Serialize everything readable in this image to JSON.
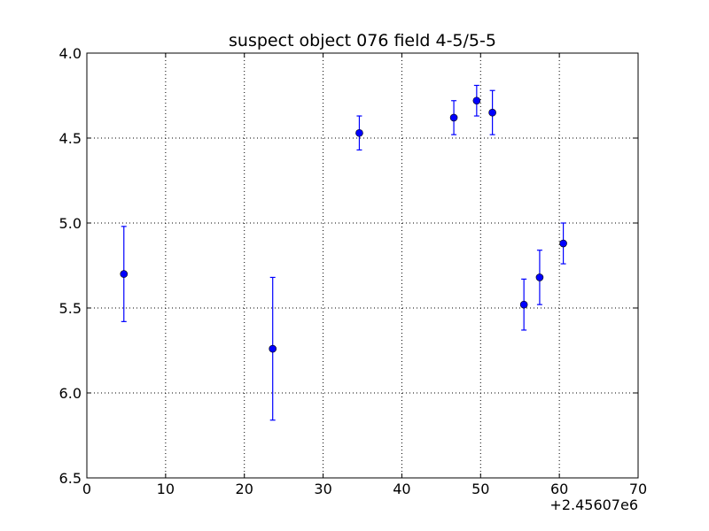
{
  "chart_data": {
    "type": "scatter",
    "title": "suspect object 076 field 4-5/5-5",
    "xlabel": "",
    "ylabel": "",
    "x_offset_label": "+2.45607e6",
    "xlim": [
      0,
      70
    ],
    "ylim": [
      4.0,
      6.5
    ],
    "y_inverted": true,
    "x_ticks": [
      0,
      10,
      20,
      30,
      40,
      50,
      60,
      70
    ],
    "x_tick_labels": [
      "0",
      "10",
      "20",
      "30",
      "40",
      "50",
      "60",
      "70"
    ],
    "y_ticks": [
      4.0,
      4.5,
      5.0,
      5.5,
      6.0,
      6.5
    ],
    "y_tick_labels": [
      "4.0",
      "4.5",
      "5.0",
      "5.5",
      "6.0",
      "6.5"
    ],
    "grid": true,
    "marker_color": "#0000ff",
    "series": [
      {
        "points": [
          {
            "x": 4.7,
            "y": 5.3,
            "err": 0.28
          },
          {
            "x": 23.6,
            "y": 5.74,
            "err": 0.42
          },
          {
            "x": 34.6,
            "y": 4.47,
            "err": 0.1
          },
          {
            "x": 46.6,
            "y": 4.38,
            "err": 0.1
          },
          {
            "x": 49.5,
            "y": 4.28,
            "err": 0.09
          },
          {
            "x": 51.5,
            "y": 4.35,
            "err": 0.13
          },
          {
            "x": 55.5,
            "y": 5.48,
            "err": 0.15
          },
          {
            "x": 57.5,
            "y": 5.32,
            "err": 0.16
          },
          {
            "x": 60.5,
            "y": 5.12,
            "err": 0.12
          }
        ]
      }
    ]
  }
}
